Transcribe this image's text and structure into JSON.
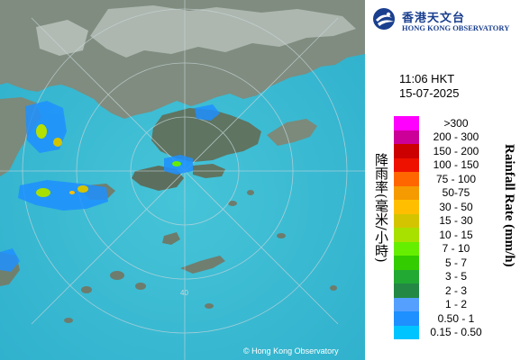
{
  "header": {
    "org_name_zh": "香港天文台",
    "org_name_en": "HONG KONG OBSERVATORY"
  },
  "timestamp": {
    "time": "11:06 HKT",
    "date": "15-07-2025"
  },
  "legend": {
    "title_zh": "降雨率(毫米/小時)",
    "title_en": "Rainfall Rate (mm/h)",
    "items": [
      {
        "label": ">300",
        "color": "#ff00ff"
      },
      {
        "label": "200 - 300",
        "color": "#cc0099"
      },
      {
        "label": "150 - 200",
        "color": "#cc0000"
      },
      {
        "label": "100 - 150",
        "color": "#ee1100"
      },
      {
        "label": "75 - 100",
        "color": "#ff6600"
      },
      {
        "label": "50-75",
        "color": "#f59a00"
      },
      {
        "label": "30 - 50",
        "color": "#ffbf00"
      },
      {
        "label": "15 - 30",
        "color": "#d4c400"
      },
      {
        "label": "10 - 15",
        "color": "#a8e000"
      },
      {
        "label": "7 - 10",
        "color": "#66ee00"
      },
      {
        "label": "5 - 7",
        "color": "#33cc00"
      },
      {
        "label": "3 - 5",
        "color": "#22a933"
      },
      {
        "label": "2 - 3",
        "color": "#228844"
      },
      {
        "label": "1 - 2",
        "color": "#55a0ff"
      },
      {
        "label": "0.50 - 1",
        "color": "#1e90ff"
      },
      {
        "label": "0.15 - 0.50",
        "color": "#00c4ff"
      }
    ]
  },
  "map": {
    "range_ring_label": "40",
    "copyright": "© Hong Kong Observatory",
    "colors": {
      "sea": "#3fbfd6",
      "land": "#7c8b7c",
      "rain_light": "#1e90ff",
      "rain_moderate": "#66ee00"
    }
  }
}
